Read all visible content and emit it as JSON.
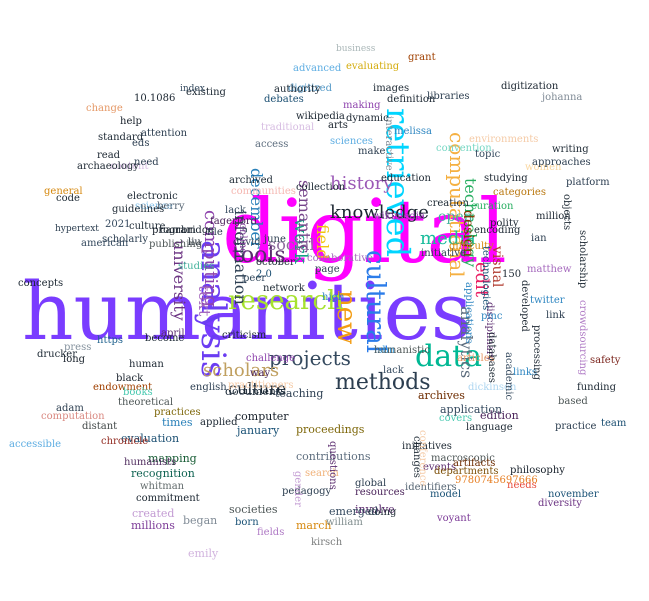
{
  "words": [
    {
      "text": "digital",
      "color": "#ff00ff",
      "rot": 0
    },
    {
      "text": "humanities",
      "color": "#7a3cff",
      "rot": 0
    },
    {
      "text": "retrieved",
      "color": "#00d5ff",
      "rot": 90
    },
    {
      "text": "analysis",
      "color": "#6b3df2",
      "rot": 90
    },
    {
      "text": "data",
      "color": "#00b894",
      "rot": 0
    },
    {
      "text": "cultural",
      "color": "#2b7ce9",
      "rot": 90
    },
    {
      "text": "new",
      "color": "#f39c12",
      "rot": 90
    },
    {
      "text": "research",
      "color": "#a6e22e",
      "rot": 0
    },
    {
      "text": "methods",
      "color": "#2c3e50",
      "rot": 0
    },
    {
      "text": "tools",
      "color": "#5b2c6f",
      "rot": 0
    },
    {
      "text": "knowledge",
      "color": "#1b2631",
      "rot": 0
    },
    {
      "text": "computational",
      "color": "#f5b041",
      "rot": 90
    },
    {
      "text": "projects",
      "color": "#34495e",
      "rot": 0
    },
    {
      "text": "scholars",
      "color": "#c0a060",
      "rot": 0
    },
    {
      "text": "history",
      "color": "#9b59b6",
      "rot": 0
    },
    {
      "text": "media",
      "color": "#1abc9c",
      "rot": 0
    },
    {
      "text": "computing",
      "color": "#8e44ad",
      "rot": 90
    },
    {
      "text": "work",
      "color": "#16a085",
      "rot": 90
    },
    {
      "text": "edit",
      "color": "#e91e63",
      "rot": 90
    },
    {
      "text": "technology",
      "color": "#27ae60",
      "rot": 90
    },
    {
      "text": "analytics",
      "color": "#5d6d7e",
      "rot": 90
    },
    {
      "text": "field",
      "color": "#f1c40f",
      "rot": 90
    },
    {
      "text": "culture",
      "color": "#1c2833",
      "rot": 0
    },
    {
      "text": "social",
      "color": "#8e6f9e",
      "rot": 0
    },
    {
      "text": "semantic",
      "color": "#76448a",
      "rot": 90
    },
    {
      "text": "information",
      "color": "#2e4053",
      "rot": 90
    },
    {
      "text": "university",
      "color": "#6c3483",
      "rot": 90
    },
    {
      "text": "december",
      "color": "#2980b9",
      "rot": 90
    },
    {
      "text": "text",
      "color": "#a569bd",
      "rot": 90
    },
    {
      "text": "open",
      "color": "#45b39d",
      "rot": 0
    },
    {
      "text": "design",
      "color": "#873600",
      "rot": 90
    },
    {
      "text": "visual",
      "color": "#b03a2e",
      "rot": 90
    },
    {
      "text": "archives",
      "color": "#6e2c00",
      "rot": 0
    },
    {
      "text": "application",
      "color": "#34495e",
      "rot": 0
    },
    {
      "text": "edition",
      "color": "#4a235a",
      "rot": 0
    },
    {
      "text": "evaluation",
      "color": "#1b4f72",
      "rot": 0
    },
    {
      "text": "mapping",
      "color": "#145a32",
      "rot": 0
    },
    {
      "text": "recognition",
      "color": "#0e6251",
      "rot": 0
    },
    {
      "text": "created",
      "color": "#c39bd3",
      "rot": 0
    },
    {
      "text": "millions",
      "color": "#7d3c98",
      "rot": 0
    },
    {
      "text": "began",
      "color": "#808b96",
      "rot": 0
    },
    {
      "text": "emily",
      "color": "#d2b4de",
      "rot": 0
    },
    {
      "text": "societies",
      "color": "#4d5656",
      "rot": 0
    },
    {
      "text": "born",
      "color": "#1a5276",
      "rot": 0
    },
    {
      "text": "fields",
      "color": "#af7ac5",
      "rot": 0
    },
    {
      "text": "march",
      "color": "#d68910",
      "rot": 0
    },
    {
      "text": "kirsch",
      "color": "#7b7d7d",
      "rot": 0
    },
    {
      "text": "involve",
      "color": "#5b2c6f",
      "rot": 0
    },
    {
      "text": "doing",
      "color": "#1c2833",
      "rot": 0
    },
    {
      "text": "william",
      "color": "#7f8c8d",
      "rot": 0
    },
    {
      "text": "emerged",
      "color": "#34495e",
      "rot": 0
    },
    {
      "text": "resources",
      "color": "#4a235a",
      "rot": 0
    },
    {
      "text": "search",
      "color": "#f0b27a",
      "rot": 0
    },
    {
      "text": "contributions",
      "color": "#5d6d7e",
      "rot": 0
    },
    {
      "text": "proceedings",
      "color": "#7d6608",
      "rot": 0
    },
    {
      "text": "teaching",
      "color": "#2e4053",
      "rot": 0
    },
    {
      "text": "documents",
      "color": "#212f3d",
      "rot": 0
    },
    {
      "text": "computer",
      "color": "#17202a",
      "rot": 0
    },
    {
      "text": "january",
      "color": "#1a5276",
      "rot": 0
    },
    {
      "text": "times",
      "color": "#2980b9",
      "rot": 0
    },
    {
      "text": "practices",
      "color": "#7d6608",
      "rot": 0
    },
    {
      "text": "theoretical",
      "color": "#4d5656",
      "rot": 0
    },
    {
      "text": "chronicle",
      "color": "#922b21",
      "rot": 0
    },
    {
      "text": "distant",
      "color": "#424949",
      "rot": 0
    },
    {
      "text": "commitment",
      "color": "#1b2631",
      "rot": 0
    },
    {
      "text": "whitman",
      "color": "#616a6b",
      "rot": 0
    },
    {
      "text": "humanists",
      "color": "#512e5f",
      "rot": 0
    },
    {
      "text": "endowment",
      "color": "#a04000",
      "rot": 0
    },
    {
      "text": "press",
      "color": "#85929e",
      "rot": 0
    },
    {
      "text": "long",
      "color": "#17202a",
      "rot": 0
    },
    {
      "text": "https",
      "color": "#1f618d",
      "rot": 0
    },
    {
      "text": "books",
      "color": "#48c9b0",
      "rot": 0
    },
    {
      "text": "april",
      "color": "#5b2c6f",
      "rot": 0
    },
    {
      "text": "criticism",
      "color": "#1c2833",
      "rot": 0
    },
    {
      "text": "way",
      "color": "#4a235a",
      "rot": 0
    },
    {
      "text": "isbn",
      "color": "#3498db",
      "rot": 0
    },
    {
      "text": "lack",
      "color": "#34495e",
      "rot": 0
    },
    {
      "text": "links",
      "color": "#2e86c1",
      "rot": 0
    },
    {
      "text": "funding",
      "color": "#1c2833",
      "rot": 0
    },
    {
      "text": "based",
      "color": "#4d5656",
      "rot": 0
    },
    {
      "text": "team",
      "color": "#1b4f72",
      "rot": 0
    },
    {
      "text": "safety",
      "color": "#7b241c",
      "rot": 0
    },
    {
      "text": "needs",
      "color": "#e74c3c",
      "rot": 0
    },
    {
      "text": "diversity",
      "color": "#6c3483",
      "rot": 0
    },
    {
      "text": "philosophy",
      "color": "#17202a",
      "rot": 0
    },
    {
      "text": "events",
      "color": "#5b2c6f",
      "rot": 0
    },
    {
      "text": "departments",
      "color": "#7e5109",
      "rot": 0
    },
    {
      "text": "9780745697666",
      "color": "#e67e22",
      "rot": 0
    },
    {
      "text": "identifiers",
      "color": "#566573",
      "rot": 0
    },
    {
      "text": "model",
      "color": "#1a5276",
      "rot": 0
    },
    {
      "text": "voyant",
      "color": "#7d3c98",
      "rot": 0
    },
    {
      "text": "global",
      "color": "#2c3e50",
      "rot": 0
    },
    {
      "text": "initiatives",
      "color": "#1b2631",
      "rot": 0
    },
    {
      "text": "macroscopic",
      "color": "#4d5656",
      "rot": 0
    },
    {
      "text": "november",
      "color": "#1a5276",
      "rot": 0
    },
    {
      "text": "artifacts",
      "color": "#6e2c00",
      "rot": 0
    },
    {
      "text": "practice",
      "color": "#2c3e50",
      "rot": 0
    },
    {
      "text": "covers",
      "color": "#48c9b0",
      "rot": 0
    },
    {
      "text": "dickinson",
      "color": "#aed6f1",
      "rot": 0
    },
    {
      "text": "humanistic",
      "color": "#4d5656",
      "rot": 0
    },
    {
      "text": "practitioners",
      "color": "#f5cba7",
      "rot": 0
    },
    {
      "text": "communities",
      "color": "#f5b7b1",
      "rot": 0
    },
    {
      "text": "lack",
      "color": "#34495e",
      "rot": 0
    },
    {
      "text": "culture",
      "color": "#1c2833",
      "rot": 0
    },
    {
      "text": "scholarly",
      "color": "#2e4053",
      "rot": 0
    },
    {
      "text": "become",
      "color": "#1c2833",
      "rot": 0
    },
    {
      "text": "american",
      "color": "#34495e",
      "rot": 0
    },
    {
      "text": "program",
      "color": "#17202a",
      "rot": 0
    },
    {
      "text": "publishing",
      "color": "#4d5656",
      "rot": 0
    },
    {
      "text": "cambridge",
      "color": "#1b2631",
      "rot": 0
    },
    {
      "text": "file",
      "color": "#2c3e50",
      "rot": 0
    },
    {
      "text": "fagerjord",
      "color": "#4a235a",
      "rot": 0
    },
    {
      "text": "david",
      "color": "#2e4053",
      "rot": 0
    },
    {
      "text": "access",
      "color": "#5d6d7e",
      "rot": 0
    },
    {
      "text": "traditional",
      "color": "#d7bde2",
      "rot": 0
    },
    {
      "text": "debates",
      "color": "#1b4f72",
      "rot": 0
    },
    {
      "text": "digitized",
      "color": "#5499c7",
      "rot": 0
    },
    {
      "text": "advanced",
      "color": "#5dade2",
      "rot": 0
    },
    {
      "text": "business",
      "color": "#aab7b8",
      "rot": 0
    },
    {
      "text": "evaluating",
      "color": "#d4ac0d",
      "rot": 0
    },
    {
      "text": "images",
      "color": "#1c2833",
      "rot": 0
    },
    {
      "text": "definition",
      "color": "#1b2631",
      "rot": 0
    },
    {
      "text": "interactive",
      "color": "#808b96",
      "rot": 90
    },
    {
      "text": "melissa",
      "color": "#2e86c1",
      "rot": 0
    },
    {
      "text": "convention",
      "color": "#76d7c4",
      "rot": 0
    },
    {
      "text": "environments",
      "color": "#f5cba7",
      "rot": 0
    },
    {
      "text": "writing",
      "color": "#1c2833",
      "rot": 0
    },
    {
      "text": "women",
      "color": "#fad7a0",
      "rot": 0
    },
    {
      "text": "approaches",
      "color": "#2c3e50",
      "rot": 0
    },
    {
      "text": "studying",
      "color": "#1b2631",
      "rot": 0
    },
    {
      "text": "topic",
      "color": "#34495e",
      "rot": 0
    },
    {
      "text": "categories",
      "color": "#b9770e",
      "rot": 0
    },
    {
      "text": "curation",
      "color": "#27ae60",
      "rot": 0
    },
    {
      "text": "polity",
      "color": "#1b2631",
      "rot": 0
    },
    {
      "text": "encoding",
      "color": "#1c2833",
      "rot": 0
    },
    {
      "text": "difficulty",
      "color": "#d68910",
      "rot": 0
    },
    {
      "text": "creation",
      "color": "#1c2833",
      "rot": 0
    },
    {
      "text": "initiative",
      "color": "#2e4053",
      "rot": 0
    },
    {
      "text": "wikimedia",
      "color": "#8e44ad",
      "rot": 0
    },
    {
      "text": "education",
      "color": "#1b2631",
      "rot": 0
    },
    {
      "text": "make",
      "color": "#2c3e50",
      "rot": 0
    },
    {
      "text": "sciences",
      "color": "#5dade2",
      "rot": 0
    },
    {
      "text": "arts",
      "color": "#17202a",
      "rot": 0
    },
    {
      "text": "wikipedia",
      "color": "#1b2631",
      "rot": 0
    },
    {
      "text": "collection",
      "color": "#1c2833",
      "rot": 0
    },
    {
      "text": "collaborative",
      "color": "#a569bd",
      "rot": 0
    },
    {
      "text": "high",
      "color": "#2e86c1",
      "rot": 0
    },
    {
      "text": "october",
      "color": "#1c2833",
      "rot": 0
    },
    {
      "text": "page",
      "color": "#2c3e50",
      "rot": 0
    },
    {
      "text": "2.0",
      "color": "#1b4f72",
      "rot": 0
    },
    {
      "text": "network",
      "color": "#1c2833",
      "rot": 0
    },
    {
      "text": "peer",
      "color": "#34495e",
      "rot": 0
    },
    {
      "text": "online",
      "color": "#7d3c98",
      "rot": 90
    },
    {
      "text": "archived",
      "color": "#1c2833",
      "rot": 0
    },
    {
      "text": "june",
      "color": "#2c3e50",
      "rot": 0
    },
    {
      "text": "liu",
      "color": "#1b2631",
      "rot": 0
    },
    {
      "text": "studies",
      "color": "#45b39d",
      "rot": 0
    },
    {
      "text": "science",
      "color": "#85c1e9",
      "rot": 0
    },
    {
      "text": "electronic",
      "color": "#1c2833",
      "rot": 0
    },
    {
      "text": "berry",
      "color": "#566573",
      "rot": 0
    },
    {
      "text": "2021",
      "color": "#34495e",
      "rot": 0
    },
    {
      "text": "content",
      "color": "#d7bde2",
      "rot": 0
    },
    {
      "text": "need",
      "color": "#2c3e50",
      "rot": 0
    },
    {
      "text": "eds",
      "color": "#2e4053",
      "rot": 0
    },
    {
      "text": "read",
      "color": "#1b2631",
      "rot": 0
    },
    {
      "text": "change",
      "color": "#e59866",
      "rot": 0
    },
    {
      "text": "help",
      "color": "#17202a",
      "rot": 0
    },
    {
      "text": "standard",
      "color": "#1c2833",
      "rot": 0
    },
    {
      "text": "attention",
      "color": "#2c3e50",
      "rot": 0
    },
    {
      "text": "10.1086",
      "color": "#1b2631",
      "rot": 0
    },
    {
      "text": "existing",
      "color": "#1c2833",
      "rot": 0
    },
    {
      "text": "index",
      "color": "#34495e",
      "rot": 0
    },
    {
      "text": "authority",
      "color": "#1c2833",
      "rot": 0
    },
    {
      "text": "dynamic",
      "color": "#1b2631",
      "rot": 0
    },
    {
      "text": "making",
      "color": "#8e44ad",
      "rot": 0
    },
    {
      "text": "grant",
      "color": "#a04000",
      "rot": 0
    },
    {
      "text": "libraries",
      "color": "#2c3e50",
      "rot": 0
    },
    {
      "text": "digitization",
      "color": "#1b2631",
      "rot": 0
    },
    {
      "text": "johanna",
      "color": "#808b96",
      "rot": 0
    },
    {
      "text": "guidelines",
      "color": "#1c2833",
      "rot": 0
    },
    {
      "text": "archaeology",
      "color": "#1b2631",
      "rot": 0
    },
    {
      "text": "code",
      "color": "#1c2833",
      "rot": 0
    },
    {
      "text": "hypertext",
      "color": "#2c3e50",
      "rot": 0
    },
    {
      "text": "general",
      "color": "#d68910",
      "rot": 0
    },
    {
      "text": "concepts",
      "color": "#1b2631",
      "rot": 0
    },
    {
      "text": "drucker",
      "color": "#1c2833",
      "rot": 0
    },
    {
      "text": "adam",
      "color": "#2c3e50",
      "rot": 0
    },
    {
      "text": "black",
      "color": "#17202a",
      "rot": 0
    },
    {
      "text": "human",
      "color": "#1b2631",
      "rot": 0
    },
    {
      "text": "english",
      "color": "#2e4053",
      "rot": 0
    },
    {
      "text": "accessible",
      "color": "#5dade2",
      "rot": 0
    },
    {
      "text": "computation",
      "color": "#d98880",
      "rot": 0
    },
    {
      "text": "conference",
      "color": "#f5cba7",
      "rot": 90
    },
    {
      "text": "changes",
      "color": "#1c2833",
      "rot": 90
    },
    {
      "text": "questions",
      "color": "#5b2c6f",
      "rot": 90
    },
    {
      "text": "challenge",
      "color": "#8e44ad",
      "rot": 0
    },
    {
      "text": "applied",
      "color": "#1b2631",
      "rot": 0
    },
    {
      "text": "pedagogy",
      "color": "#2c3e50",
      "rot": 0
    },
    {
      "text": "language",
      "color": "#1c2833",
      "rot": 0
    },
    {
      "text": "gender",
      "color": "#c39bd3",
      "rot": 90
    },
    {
      "text": "disciplinary",
      "color": "#5b2c6f",
      "rot": 90
    },
    {
      "text": "pmc",
      "color": "#2e86c1",
      "rot": 0
    },
    {
      "text": "150",
      "color": "#1b2631",
      "rot": 0
    },
    {
      "text": "twitter",
      "color": "#2e86c1",
      "rot": 0
    },
    {
      "text": "articles",
      "color": "#e59866",
      "rot": 0
    },
    {
      "text": "ian",
      "color": "#2c3e50",
      "rot": 0
    },
    {
      "text": "matthew",
      "color": "#a569bd",
      "rot": 0
    },
    {
      "text": "million",
      "color": "#1b2631",
      "rot": 0
    },
    {
      "text": "platform",
      "color": "#2e4053",
      "rot": 0
    },
    {
      "text": "scholarship",
      "color": "#1c2833",
      "rot": 90
    },
    {
      "text": "crowdsourcing",
      "color": "#af7ac5",
      "rot": 90
    },
    {
      "text": "objects",
      "color": "#1c2833",
      "rot": 90
    },
    {
      "text": "processing",
      "color": "#1b2631",
      "rot": 90
    },
    {
      "text": "link",
      "color": "#2c3e50",
      "rot": 0
    },
    {
      "text": "academic",
      "color": "#34495e",
      "rot": 90
    },
    {
      "text": "developed",
      "color": "#1b2631",
      "rot": 90
    },
    {
      "text": "databases",
      "color": "#1c2833",
      "rot": 90
    },
    {
      "text": "applications",
      "color": "#2e86c1",
      "rot": 90
    },
    {
      "text": "technologies",
      "color": "#1a5276",
      "rot": 90
    },
    {
      "text": "pmid",
      "color": "#1b2631",
      "rot": 90
    },
    {
      "text": "digging",
      "color": "#1c2833",
      "rot": 0
    },
    {
      "text": "begun",
      "color": "#a04000",
      "rot": 90
    },
    {
      "text": "researchers",
      "color": "#2e86c1",
      "rot": 90
    },
    {
      "text": "anthropology",
      "color": "#5b2c6f",
      "rot": 90
    },
    {
      "text": "nature",
      "color": "#1c2833",
      "rot": 90
    },
    {
      "text": "hci",
      "color": "#2c3e50",
      "rot": 90
    },
    {
      "text": "web",
      "color": "#1b2631",
      "rot": 90
    },
    {
      "text": "visualization",
      "color": "#f5b7b1",
      "rot": 90
    }
  ]
}
